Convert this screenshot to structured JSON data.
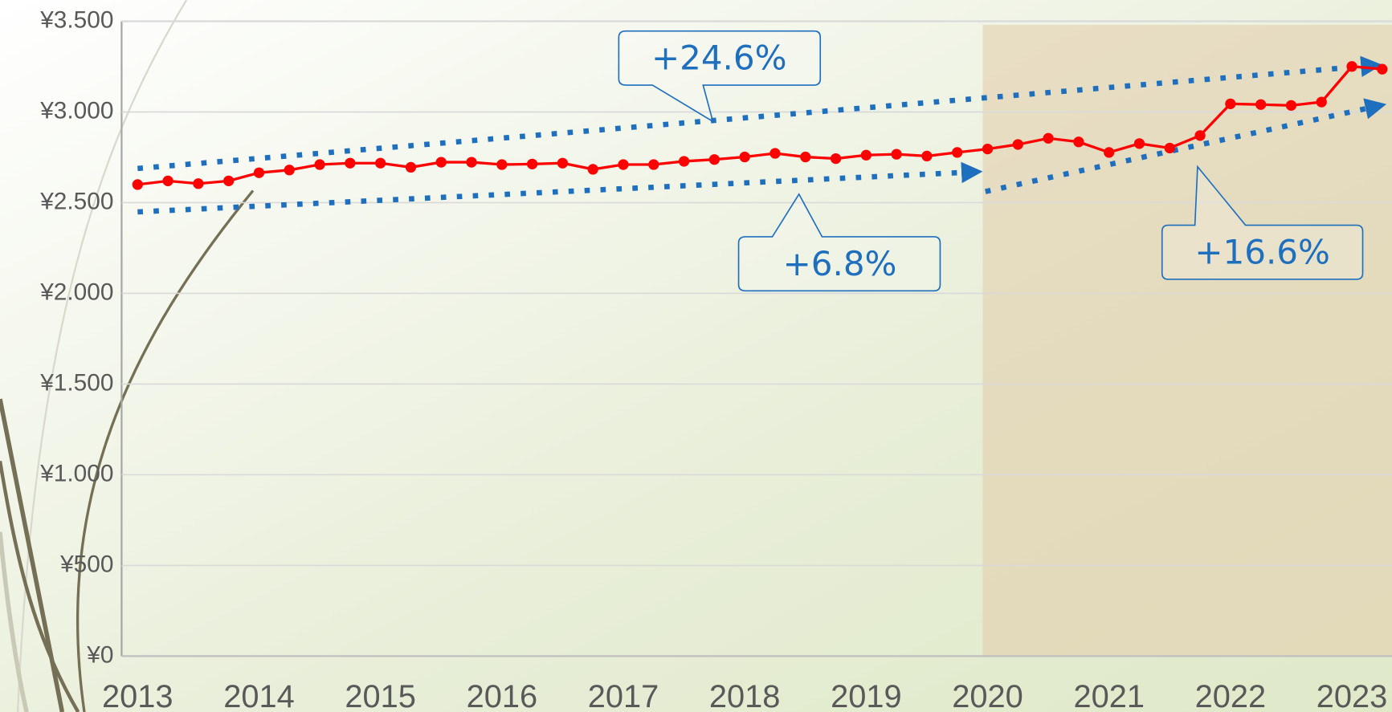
{
  "chart_data": {
    "type": "line",
    "categories": [
      "2013",
      null,
      null,
      null,
      "2014",
      null,
      null,
      null,
      "2015",
      null,
      null,
      null,
      "2016",
      null,
      null,
      null,
      "2017",
      null,
      null,
      null,
      "2018",
      null,
      null,
      null,
      "2019",
      null,
      null,
      null,
      "2020",
      null,
      null,
      null,
      "2021",
      null,
      null,
      null,
      "2022",
      null,
      null,
      null,
      "2023",
      null
    ],
    "values": [
      2600,
      2620,
      2605,
      2620,
      2665,
      2680,
      2710,
      2718,
      2718,
      2695,
      2723,
      2723,
      2710,
      2713,
      2718,
      2684,
      2710,
      2710,
      2728,
      2738,
      2752,
      2772,
      2752,
      2743,
      2762,
      2767,
      2757,
      2777,
      2796,
      2821,
      2855,
      2835,
      2777,
      2826,
      2801,
      2870,
      3045,
      3041,
      3036,
      3055,
      3251,
      3236
    ],
    "color": "#ff0000",
    "ylim": [
      0,
      3500
    ],
    "yticks": [
      {
        "value": 0,
        "label": "¥0"
      },
      {
        "value": 500,
        "label": "¥500"
      },
      {
        "value": 1000,
        "label": "¥1.000"
      },
      {
        "value": 1500,
        "label": "¥1.500"
      },
      {
        "value": 2000,
        "label": "¥2.000"
      },
      {
        "value": 2500,
        "label": "¥2.500"
      },
      {
        "value": 3000,
        "label": "¥3.000"
      },
      {
        "value": 3500,
        "label": "¥3.500"
      }
    ],
    "grid": true,
    "annotations": [
      "+24.6%",
      "+6.8%",
      "+16.6%"
    ]
  }
}
